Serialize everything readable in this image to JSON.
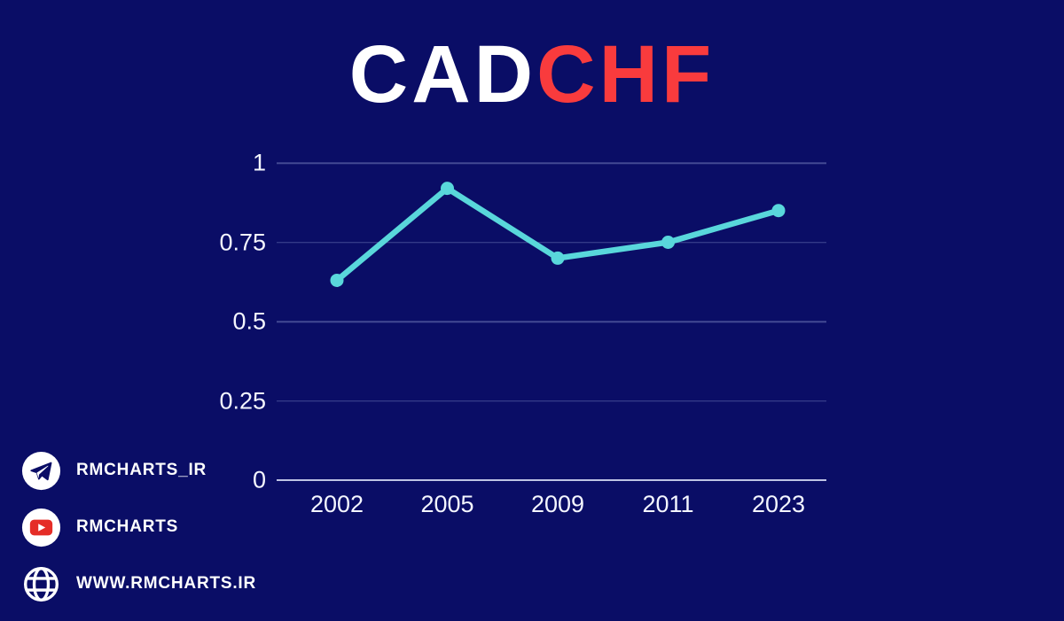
{
  "title": {
    "base": "CAD",
    "quote": "CHF"
  },
  "colors": {
    "background": "#0A0D66",
    "title_base": "#FFFFFF",
    "title_quote": "#F93B3D",
    "line": "#59D7DB",
    "marker": "#59D7DB",
    "gridline": "rgba(160,170,220,0.38)",
    "axis_line": "rgba(222,228,250,0.85)",
    "tick_text": "#F4F6FF"
  },
  "chart_data": {
    "type": "line",
    "title": "CADCHF",
    "xlabel": "",
    "ylabel": "",
    "categories": [
      "2002",
      "2005",
      "2009",
      "2011",
      "2023"
    ],
    "series": [
      {
        "name": "CADCHF",
        "values": [
          0.63,
          0.92,
          0.7,
          0.75,
          0.85
        ]
      }
    ],
    "ylim": [
      0,
      1
    ],
    "yticks": [
      1,
      0.75,
      0.5,
      0.25,
      0
    ],
    "grid": true,
    "legend": false,
    "marker": "circle"
  },
  "footer": {
    "items": [
      {
        "icon": "telegram-icon",
        "label": "RMCHARTS_IR"
      },
      {
        "icon": "youtube-icon",
        "label": "RMCHARTS"
      },
      {
        "icon": "globe-icon",
        "label": "WWW.RMCHARTS.IR"
      }
    ]
  }
}
